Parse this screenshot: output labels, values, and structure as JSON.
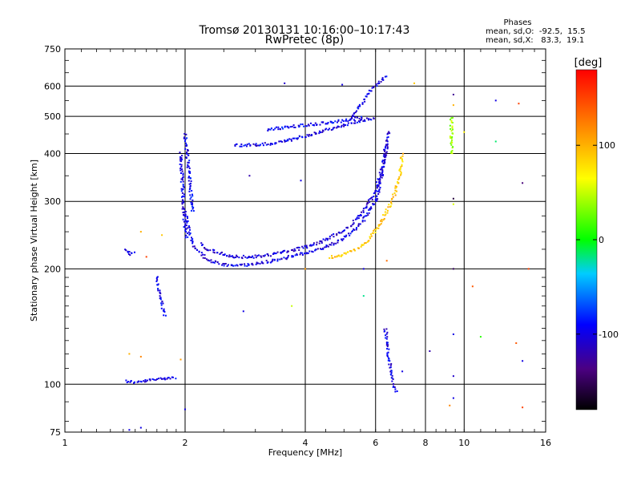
{
  "chart_data": {
    "type": "scatter",
    "title": "Tromsø 20130131 10:16:00–10:17:43",
    "subtitle": "RwPretec (8p)",
    "xlabel": "Frequency [MHz]",
    "ylabel": "Stationary phase Virtual Height [km]",
    "x_scale": "log",
    "y_scale": "log",
    "xlim": [
      1,
      16
    ],
    "ylim": [
      75,
      750
    ],
    "x_ticks": [
      1,
      2,
      4,
      6,
      8,
      10,
      16
    ],
    "x_tick_labels": [
      "1",
      "2",
      "4",
      "6",
      "8",
      "10",
      "16"
    ],
    "y_ticks": [
      75,
      100,
      200,
      300,
      400,
      500,
      600,
      750
    ],
    "y_tick_labels": [
      "75",
      "100",
      "200",
      "300",
      "400",
      "500",
      "600",
      "750"
    ],
    "grid": true,
    "stats": {
      "heading": "Phases",
      "line_o": "mean, sd,O:  -92.5,  15.5",
      "line_x": "mean, sd,X:   83.3,  19.1"
    },
    "colorbar": {
      "label": "[deg]",
      "range": [
        -180,
        180
      ],
      "ticks": [
        100,
        0,
        -100
      ],
      "tick_labels": [
        "100",
        "0",
        "-100"
      ]
    },
    "series": [
      {
        "curves": [
          {
            "x": [
              1.42,
              1.5,
              1.6,
              1.7,
              1.8,
              1.9
            ],
            "y": [
              102,
              101,
              102,
              103,
              104,
              104
            ],
            "phase": -100
          },
          {
            "x": [
              1.42,
              1.46,
              1.5
            ],
            "y": [
              225,
              218,
              222
            ],
            "phase": -105
          },
          {
            "x": [
              1.7,
              1.72,
              1.75,
              1.78
            ],
            "y": [
              190,
              175,
              160,
              150
            ],
            "phase": -100
          },
          {
            "x": [
              1.95,
              1.97,
              1.99,
              2.02
            ],
            "y": [
              400,
              330,
              270,
              240
            ],
            "phase": -100
          },
          {
            "x": [
              2.0,
              2.03,
              2.06,
              2.09
            ],
            "y": [
              450,
              390,
              330,
              280
            ],
            "phase": -95
          },
          {
            "x": [
              2.0,
              2.05,
              2.1,
              2.2,
              2.3,
              2.5,
              2.7,
              3.0,
              3.3,
              3.6,
              4.0,
              4.4,
              4.8,
              5.2,
              5.6,
              6.0,
              6.2,
              6.35
            ],
            "y": [
              280,
              250,
              230,
              218,
              210,
              205,
              204,
              206,
              210,
              214,
              220,
              226,
              235,
              248,
              268,
              300,
              340,
              420
            ],
            "phase": -100
          },
          {
            "x": [
              2.2,
              2.3,
              2.5,
              2.7,
              3.0,
              3.3,
              3.6,
              4.0,
              4.4,
              4.8,
              5.2,
              5.6,
              6.0,
              6.3,
              6.5
            ],
            "y": [
              232,
              224,
              218,
              215,
              215,
              218,
              222,
              228,
              236,
              246,
              260,
              282,
              320,
              380,
              460
            ],
            "phase": -105
          },
          {
            "x": [
              4.6,
              5.0,
              5.4,
              5.8,
              6.2,
              6.6,
              6.9,
              7.0
            ],
            "y": [
              214,
              218,
              225,
              240,
              265,
              300,
              350,
              400
            ],
            "phase": 90
          },
          {
            "x": [
              2.65,
              2.8,
              3.0,
              3.3,
              3.6,
              4.0,
              4.5,
              5.0,
              5.5,
              6.0
            ],
            "y": [
              420,
              420,
              422,
              425,
              432,
              445,
              460,
              475,
              488,
              495
            ],
            "phase": -100
          },
          {
            "x": [
              3.2,
              3.4,
              3.6,
              4.0,
              4.4,
              4.8,
              5.2,
              5.6
            ],
            "y": [
              462,
              465,
              468,
              475,
              480,
              485,
              490,
              500
            ],
            "phase": -95
          },
          {
            "x": [
              5.2,
              5.4,
              5.6,
              5.8,
              6.0,
              6.2,
              6.4
            ],
            "y": [
              490,
              520,
              550,
              580,
              600,
              620,
              640
            ],
            "phase": -100
          },
          {
            "x": [
              9.3,
              9.3,
              9.3,
              9.3
            ],
            "y": [
              400,
              430,
              460,
              500
            ],
            "phase": 40
          },
          {
            "x": [
              6.35,
              6.45,
              6.55,
              6.65,
              6.8
            ],
            "y": [
              140,
              120,
              110,
              100,
              95
            ],
            "phase": -100
          }
        ]
      }
    ],
    "points": [
      {
        "x": 3.55,
        "y": 610,
        "phase": -110
      },
      {
        "x": 4.95,
        "y": 605,
        "phase": -100
      },
      {
        "x": 7.5,
        "y": 610,
        "phase": 90
      },
      {
        "x": 9.4,
        "y": 570,
        "phase": -130
      },
      {
        "x": 9.4,
        "y": 535,
        "phase": 100
      },
      {
        "x": 12.0,
        "y": 550,
        "phase": -100
      },
      {
        "x": 13.7,
        "y": 540,
        "phase": 150
      },
      {
        "x": 10.0,
        "y": 455,
        "phase": 70
      },
      {
        "x": 12.0,
        "y": 430,
        "phase": -15
      },
      {
        "x": 14.0,
        "y": 335,
        "phase": -140
      },
      {
        "x": 9.4,
        "y": 295,
        "phase": 55
      },
      {
        "x": 2.9,
        "y": 350,
        "phase": -120
      },
      {
        "x": 3.9,
        "y": 340,
        "phase": -100
      },
      {
        "x": 1.75,
        "y": 245,
        "phase": 90
      },
      {
        "x": 1.55,
        "y": 250,
        "phase": 100
      },
      {
        "x": 1.6,
        "y": 215,
        "phase": 150
      },
      {
        "x": 4.0,
        "y": 200,
        "phase": 110
      },
      {
        "x": 6.4,
        "y": 210,
        "phase": 130
      },
      {
        "x": 5.6,
        "y": 200,
        "phase": -100
      },
      {
        "x": 10.5,
        "y": 180,
        "phase": 140
      },
      {
        "x": 5.6,
        "y": 170,
        "phase": -20
      },
      {
        "x": 3.7,
        "y": 160,
        "phase": 50
      },
      {
        "x": 2.8,
        "y": 155,
        "phase": -100
      },
      {
        "x": 8.2,
        "y": 122,
        "phase": -120
      },
      {
        "x": 9.4,
        "y": 135,
        "phase": -100
      },
      {
        "x": 11.0,
        "y": 133,
        "phase": 10
      },
      {
        "x": 13.5,
        "y": 128,
        "phase": 140
      },
      {
        "x": 14.0,
        "y": 115,
        "phase": -100
      },
      {
        "x": 1.45,
        "y": 120,
        "phase": 100
      },
      {
        "x": 1.55,
        "y": 118,
        "phase": 120
      },
      {
        "x": 1.95,
        "y": 116,
        "phase": 110
      },
      {
        "x": 9.4,
        "y": 105,
        "phase": -110
      },
      {
        "x": 7.0,
        "y": 108,
        "phase": -100
      },
      {
        "x": 9.4,
        "y": 92,
        "phase": -100
      },
      {
        "x": 9.2,
        "y": 88,
        "phase": 120
      },
      {
        "x": 14.0,
        "y": 87,
        "phase": 150
      },
      {
        "x": 2.0,
        "y": 86,
        "phase": -100
      },
      {
        "x": 1.45,
        "y": 76,
        "phase": -100
      },
      {
        "x": 1.55,
        "y": 77,
        "phase": -100
      },
      {
        "x": 9.4,
        "y": 200,
        "phase": -150
      },
      {
        "x": 9.4,
        "y": 305,
        "phase": -160
      },
      {
        "x": 14.5,
        "y": 200,
        "phase": 150
      }
    ]
  }
}
